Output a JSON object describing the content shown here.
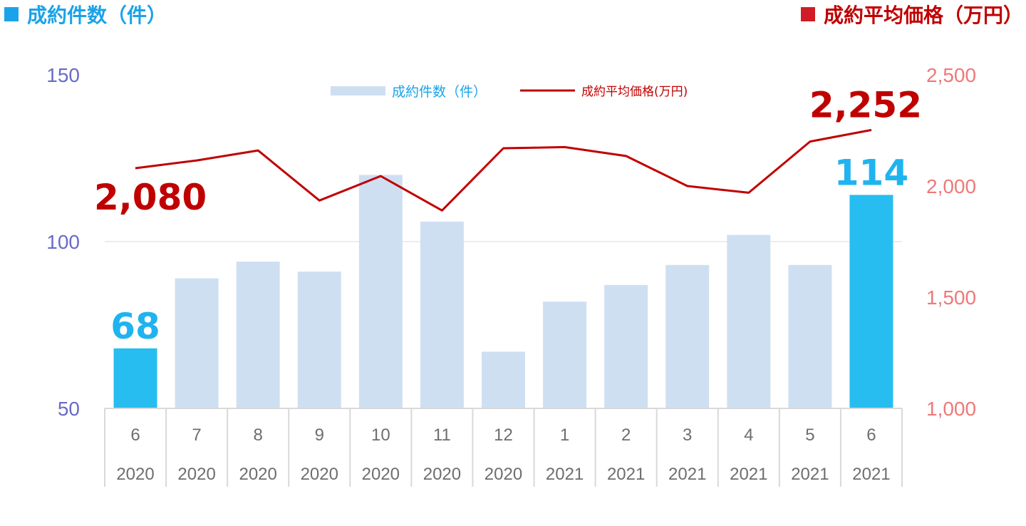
{
  "header": {
    "left_title": "成約件数（件）",
    "right_title": "成約平均価格（万円）"
  },
  "colors": {
    "bar_normal": "#cfdff2",
    "bar_highlight": "#27bdf0",
    "line": "#c00000",
    "left_axis_text": "#6a6ac8",
    "right_axis_text": "#f07878",
    "grid": "#d9d9d9"
  },
  "chart_data": {
    "type": "bar",
    "categories": [
      [
        "6",
        "2020"
      ],
      [
        "7",
        "2020"
      ],
      [
        "8",
        "2020"
      ],
      [
        "9",
        "2020"
      ],
      [
        "10",
        "2020"
      ],
      [
        "11",
        "2020"
      ],
      [
        "12",
        "2020"
      ],
      [
        "1",
        "2021"
      ],
      [
        "2",
        "2021"
      ],
      [
        "3",
        "2021"
      ],
      [
        "4",
        "2021"
      ],
      [
        "5",
        "2021"
      ],
      [
        "6",
        "2021"
      ]
    ],
    "series": [
      {
        "name": "成約件数（件）",
        "type": "bar",
        "axis": "left",
        "values": [
          68,
          89,
          94,
          91,
          120,
          106,
          67,
          82,
          87,
          93,
          102,
          93,
          114
        ],
        "highlight": [
          true,
          false,
          false,
          false,
          false,
          false,
          false,
          false,
          false,
          false,
          false,
          false,
          true
        ]
      },
      {
        "name": "成約平均価格(万円)",
        "type": "line",
        "axis": "right",
        "values": [
          2080,
          2115,
          2160,
          1935,
          2045,
          1890,
          2170,
          2175,
          2135,
          2000,
          1970,
          2200,
          2252
        ]
      }
    ],
    "y_left": {
      "min": 50,
      "max": 150,
      "ticks": [
        "50",
        "100",
        "150"
      ]
    },
    "y_right": {
      "min": 1000,
      "max": 2500,
      "ticks": [
        "1,000",
        "1,500",
        "2,000",
        "2,500"
      ]
    },
    "legend_position": "top-center",
    "grid": "horizontal",
    "data_labels": [
      {
        "series": 0,
        "index": 0,
        "text": "68"
      },
      {
        "series": 0,
        "index": 12,
        "text": "114"
      },
      {
        "series": 1,
        "index": 0,
        "text": "2,080"
      },
      {
        "series": 1,
        "index": 12,
        "text": "2,252"
      }
    ]
  }
}
